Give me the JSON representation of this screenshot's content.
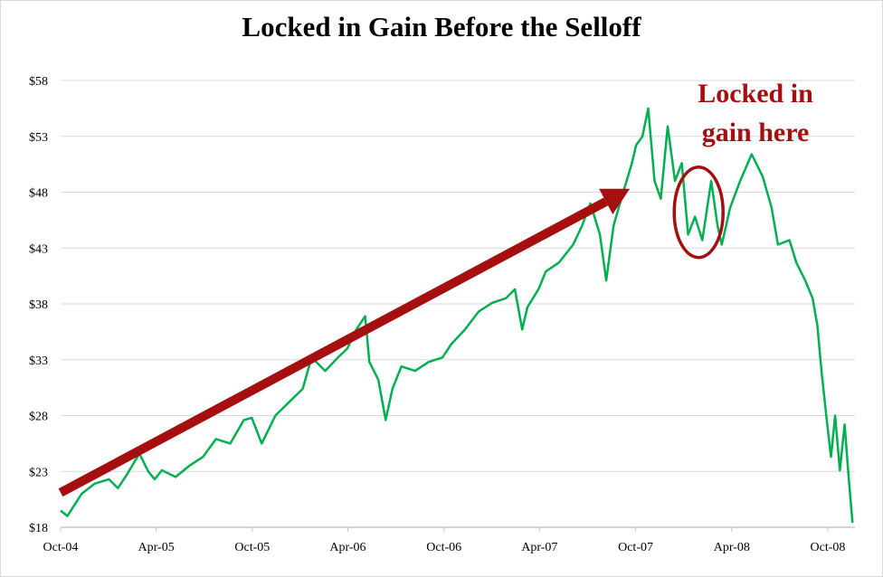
{
  "chart_data": {
    "type": "line",
    "title": "Locked in Gain Before the Selloff",
    "xlabel": "",
    "ylabel": "",
    "x_tick_labels": [
      "Oct-04",
      "Apr-05",
      "Oct-05",
      "Apr-06",
      "Oct-06",
      "Apr-07",
      "Oct-07",
      "Apr-08",
      "Oct-08"
    ],
    "x_tick_dates": [
      "2004-10-01",
      "2005-04-01",
      "2005-10-01",
      "2006-04-01",
      "2006-10-01",
      "2007-04-01",
      "2007-10-01",
      "2008-04-01",
      "2008-10-01"
    ],
    "y_tick_labels": [
      "$18",
      "$23",
      "$28",
      "$33",
      "$38",
      "$43",
      "$48",
      "$53",
      "$58"
    ],
    "y_ticks": [
      18,
      23,
      28,
      33,
      38,
      43,
      48,
      53,
      58
    ],
    "ylim": [
      18,
      58
    ],
    "grid": "horizontal",
    "line_color": "#00b050",
    "annotation_color": "#a50f0f",
    "series": [
      {
        "x": [
          "2004-10-01",
          "2004-10-14",
          "2004-11-10",
          "2004-12-05",
          "2005-01-01",
          "2005-01-18",
          "2005-02-04",
          "2005-02-28",
          "2005-03-17",
          "2005-03-29",
          "2005-04-12",
          "2005-05-08",
          "2005-06-03",
          "2005-06-29",
          "2005-07-24",
          "2005-08-20",
          "2005-09-15",
          "2005-09-30",
          "2005-10-19",
          "2005-11-14",
          "2005-12-10",
          "2006-01-05",
          "2006-01-22",
          "2006-02-17",
          "2006-03-13",
          "2006-03-31",
          "2006-04-17",
          "2006-05-04",
          "2006-05-12",
          "2006-05-29",
          "2006-06-12",
          "2006-06-25",
          "2006-07-12",
          "2006-08-07",
          "2006-09-02",
          "2006-09-28",
          "2006-10-15",
          "2006-11-10",
          "2006-12-06",
          "2007-01-01",
          "2007-01-27",
          "2007-02-13",
          "2007-02-27",
          "2007-03-09",
          "2007-03-30",
          "2007-04-13",
          "2007-05-08",
          "2007-06-04",
          "2007-06-21",
          "2007-07-07",
          "2007-07-25",
          "2007-08-06",
          "2007-08-20",
          "2007-09-06",
          "2007-09-24",
          "2007-10-02",
          "2007-10-14",
          "2007-10-25",
          "2007-11-06",
          "2007-11-18",
          "2007-12-01",
          "2007-12-15",
          "2007-12-28",
          "2008-01-09",
          "2008-01-22",
          "2008-02-05",
          "2008-02-22",
          "2008-03-05",
          "2008-03-13",
          "2008-03-29",
          "2008-04-17",
          "2008-05-09",
          "2008-05-30",
          "2008-06-16",
          "2008-06-28",
          "2008-07-20",
          "2008-08-02",
          "2008-08-19",
          "2008-09-02",
          "2008-09-11",
          "2008-09-19",
          "2008-09-28",
          "2008-10-07",
          "2008-10-15",
          "2008-10-24",
          "2008-11-02",
          "2008-11-10",
          "2008-11-17"
        ],
        "y": [
          19.5,
          19.0,
          21.0,
          21.9,
          22.3,
          21.5,
          22.7,
          24.6,
          23.0,
          22.3,
          23.1,
          22.5,
          23.5,
          24.3,
          25.9,
          25.5,
          27.6,
          27.8,
          25.5,
          28.0,
          29.2,
          30.4,
          33.2,
          32.0,
          33.2,
          34.0,
          35.7,
          36.9,
          32.8,
          31.2,
          27.6,
          30.4,
          32.4,
          32.0,
          32.8,
          33.2,
          34.4,
          35.7,
          37.3,
          38.1,
          38.5,
          39.3,
          35.7,
          37.7,
          39.3,
          40.9,
          41.7,
          43.3,
          45.0,
          47.0,
          44.2,
          40.1,
          45.0,
          47.8,
          50.6,
          52.2,
          53.0,
          55.5,
          49.0,
          47.4,
          53.9,
          49.0,
          50.6,
          44.2,
          45.8,
          43.7,
          49.0,
          45.0,
          43.3,
          46.6,
          49.0,
          51.4,
          49.4,
          46.6,
          43.3,
          43.7,
          41.7,
          40.1,
          38.5,
          36.1,
          32.0,
          28.0,
          24.3,
          28.0,
          23.1,
          27.2,
          22.3,
          18.4
        ]
      }
    ],
    "annotations": {
      "text_lines": [
        "Locked in",
        "gain here"
      ],
      "arrow": {
        "from": [
          "2004-10-01",
          21.1
        ],
        "to": [
          "2007-09-20",
          48.3
        ]
      },
      "circle": {
        "center": [
          "2008-01-29",
          46.2
        ]
      }
    }
  }
}
